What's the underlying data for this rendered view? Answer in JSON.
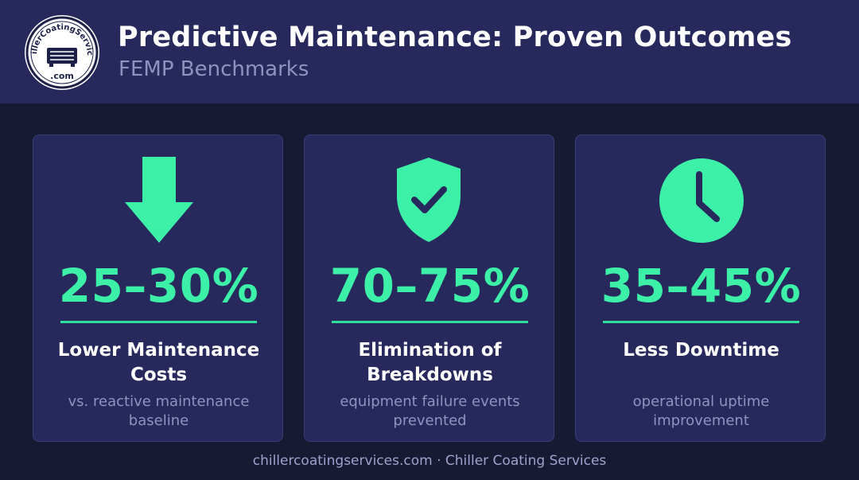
{
  "header": {
    "logo_text": "ChillerCoatingServices",
    "logo_domain": ".com",
    "title": "Predictive Maintenance: Proven Outcomes",
    "subtitle": "FEMP Benchmarks"
  },
  "cards": [
    {
      "icon": "arrow-down-icon",
      "stat": "25–30%",
      "label": "Lower Maintenance Costs",
      "description": "vs. reactive maintenance baseline"
    },
    {
      "icon": "shield-check-icon",
      "stat": "70–75%",
      "label": "Elimination of Breakdowns",
      "description": "equipment failure events prevented"
    },
    {
      "icon": "clock-icon",
      "stat": "35–45%",
      "label": "Less Downtime",
      "description": "operational uptime improvement"
    }
  ],
  "footer": {
    "text": "chillercoatingservices.com · Chiller Coating Services"
  },
  "colors": {
    "header_bg": "#27295c",
    "page_bg": "#161a33",
    "card_bg": "#27295c",
    "accent": "#3cf0a8",
    "muted_text": "#8f93c0"
  }
}
